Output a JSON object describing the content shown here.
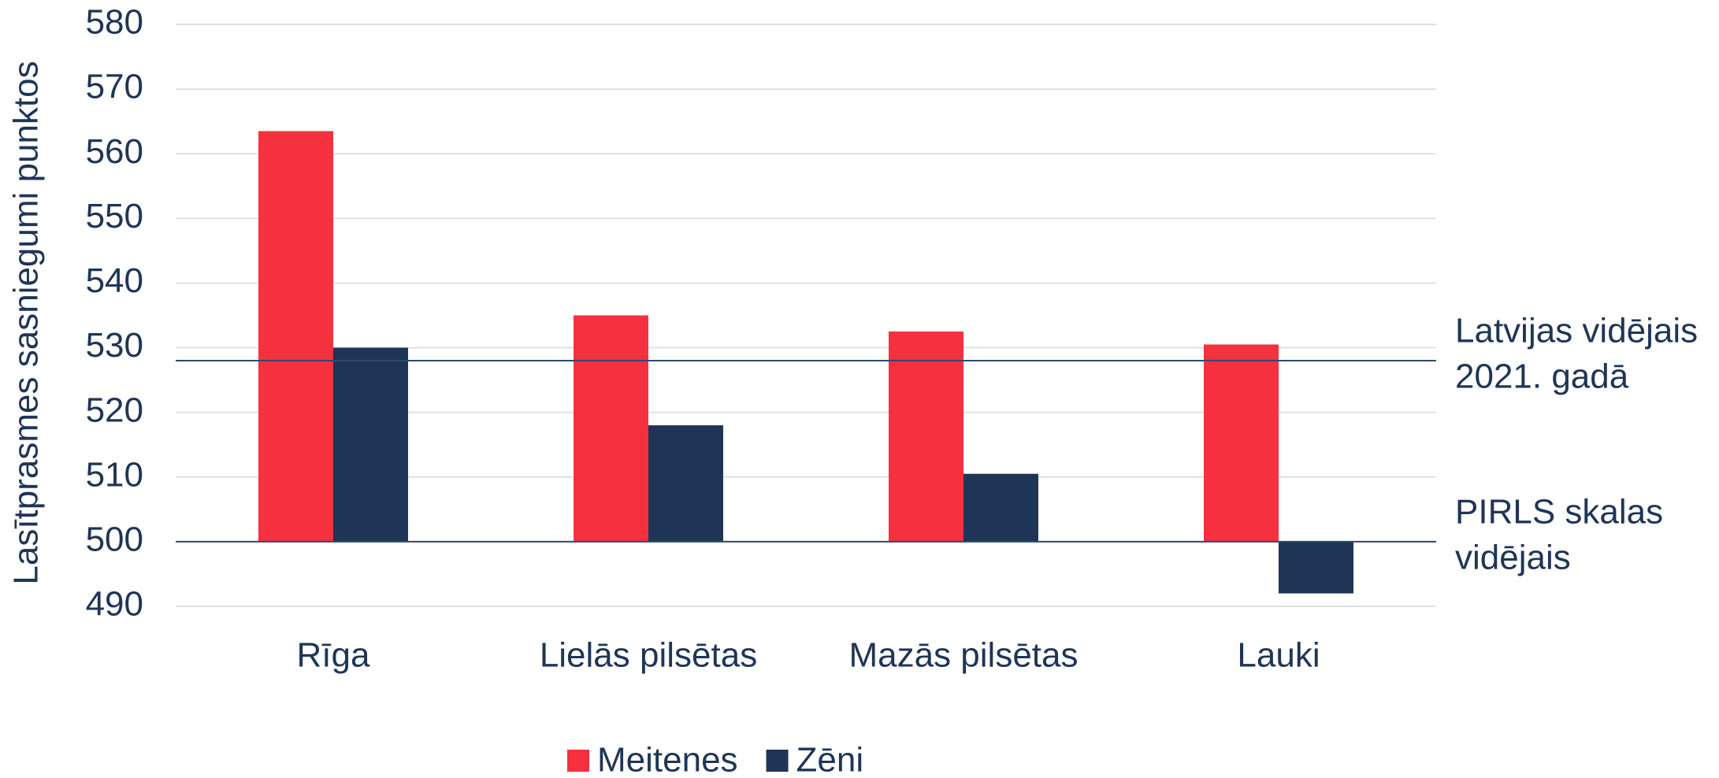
{
  "chart_data": {
    "type": "bar",
    "y_axis_label": "Lasītprasmes sasniegumi punktos",
    "categories": [
      "Rīga",
      "Lielās pilsētas",
      "Mazās pilsētas",
      "Lauki"
    ],
    "series": [
      {
        "name": "Meitenes",
        "color": "#f5313f",
        "values": [
          563.5,
          535,
          532.5,
          530.5
        ]
      },
      {
        "name": "Zēni",
        "color": "#1f3557",
        "values": [
          530,
          518,
          510.5,
          492
        ]
      }
    ],
    "ylim": [
      490,
      580
    ],
    "yticks": [
      490,
      500,
      510,
      520,
      530,
      540,
      550,
      560,
      570,
      580
    ],
    "grid": true,
    "reference_lines": [
      {
        "value": 528,
        "label_lines": [
          "Latvijas vidējais",
          "2021. gadā"
        ],
        "color": "#2b4a6f"
      },
      {
        "value": 500,
        "label_lines": [
          "PIRLS skalas",
          "vidējais"
        ],
        "color": "#2b4a6f"
      }
    ],
    "legend": "bottom"
  }
}
